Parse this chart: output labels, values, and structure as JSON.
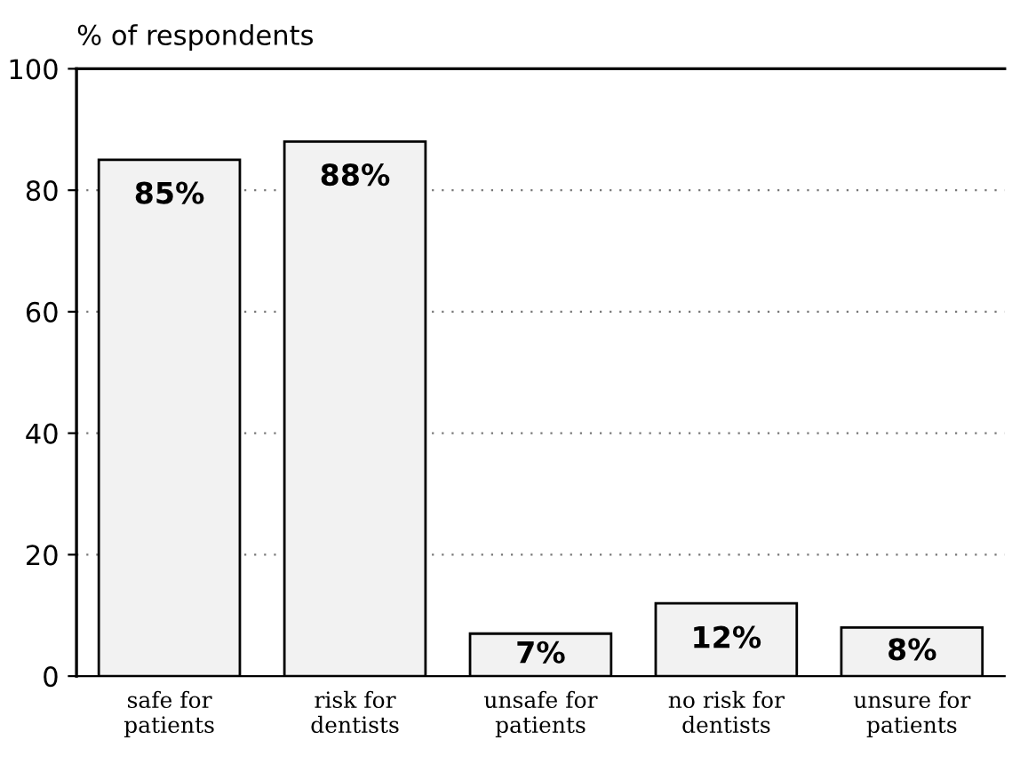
{
  "chart_data": {
    "type": "bar",
    "ylabel": "% of respondents",
    "categories": [
      "safe for\npatients",
      "risk for\ndentists",
      "unsafe for\npatients",
      "no risk for\ndentists",
      "unsure for\npatients"
    ],
    "values": [
      85,
      88,
      7,
      12,
      8
    ],
    "value_labels": [
      "85%",
      "88%",
      "7%",
      "12%",
      "8%"
    ],
    "color": "#f2f2f2",
    "ylim": [
      0,
      100
    ],
    "yticks": [
      0,
      20,
      40,
      60,
      80,
      100
    ],
    "grid": "y"
  }
}
